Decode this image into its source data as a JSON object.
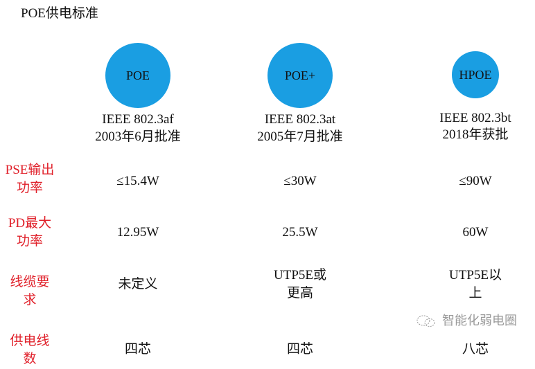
{
  "title": "POE供电标准",
  "standards": [
    {
      "name": "POE",
      "ieee": "IEEE 802.3af",
      "approval": "2003年6月批准",
      "pse": "≤15.4W",
      "pd": "12.95W",
      "cable": [
        "未定义"
      ],
      "pairs": "四芯"
    },
    {
      "name": "POE+",
      "ieee": "IEEE 802.3at",
      "approval": "2005年7月批准",
      "pse": "≤30W",
      "pd": "25.5W",
      "cable": [
        "UTP5E或",
        "更高"
      ],
      "pairs": "四芯"
    },
    {
      "name": "HPOE",
      "ieee": "IEEE 802.3bt",
      "approval": "2018年获批",
      "pse": "≤90W",
      "pd": "60W",
      "cable": [
        "UTP5E以",
        "上"
      ],
      "pairs": "八芯"
    }
  ],
  "row_labels": {
    "pse": [
      "PSE输出",
      "功率"
    ],
    "pd": [
      "PD最大",
      "功率"
    ],
    "cable": [
      "线缆要",
      "求"
    ],
    "pairs": [
      "供电线",
      "数"
    ]
  },
  "watermark": "智能化弱电圈",
  "colors": {
    "circle": "#1a9ee2",
    "label": "#e0202a"
  }
}
